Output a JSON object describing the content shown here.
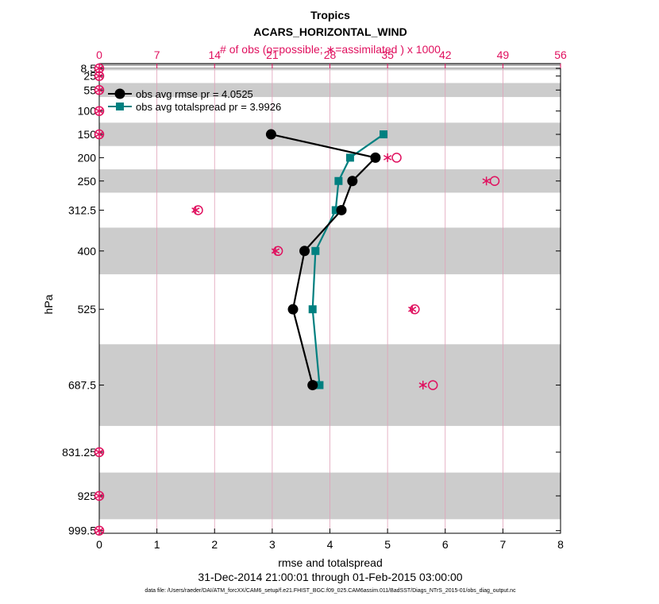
{
  "chart_data": {
    "type": "line",
    "title": "Tropics",
    "subtitle": "ACARS_HORIZONTAL_WIND",
    "top_axis_label": "# of obs (o=possible; ∗=assimilated ) x 1000",
    "xlabel": "rmse and totalspread",
    "ylabel": "hPa",
    "date_range": "31-Dec-2014 21:00:01 through 01-Feb-2015 03:00:00",
    "footnote": "data file: /Users/raeder/DAI/ATM_forcXX/CAM6_setup/f.e21.FHIST_BGC.f09_025.CAM6assim.011/BadSST/Diags_NTrS_2015-01/obs_diag_output.nc",
    "xlim": [
      0,
      8
    ],
    "xticks": [
      "0",
      "1",
      "2",
      "3",
      "4",
      "5",
      "6",
      "7",
      "8"
    ],
    "top_xlim": [
      0,
      56
    ],
    "top_xticks": [
      "0",
      "7",
      "14",
      "21",
      "28",
      "35",
      "42",
      "49",
      "56"
    ],
    "y_levels": [
      8.5,
      25,
      55,
      100,
      150,
      200,
      250,
      312.5,
      400,
      525,
      687.5,
      831.25,
      925,
      999.5
    ],
    "y_tick_labels": [
      "8.5",
      "25",
      "55",
      "100",
      "150",
      "200",
      "250",
      "312.5",
      "400",
      "525",
      "687.5",
      "831.25",
      "925",
      "999.5"
    ],
    "grid": "vertical, top axis",
    "legend_placement": "top-left",
    "shaded_layers_hPa": [
      [
        0,
        2.5
      ],
      [
        7.5,
        12.5
      ],
      [
        40,
        70
      ],
      [
        125,
        175
      ],
      [
        225,
        275
      ],
      [
        350,
        450
      ],
      [
        600,
        775
      ],
      [
        875,
        975
      ]
    ],
    "series": [
      {
        "name": "obs avg rmse pr = 4.0525",
        "color": "#000000",
        "marker": "circle",
        "points": [
          [
            2.98,
            150
          ],
          [
            4.79,
            200
          ],
          [
            4.39,
            250
          ],
          [
            4.2,
            312.5
          ],
          [
            3.56,
            400
          ],
          [
            3.36,
            525
          ],
          [
            3.7,
            687.5
          ]
        ]
      },
      {
        "name": "obs avg totalspread pr = 3.9926",
        "color": "#008080",
        "marker": "square",
        "points": [
          [
            4.93,
            150
          ],
          [
            4.35,
            200
          ],
          [
            4.15,
            250
          ],
          [
            4.1,
            312.5
          ],
          [
            3.75,
            400
          ],
          [
            3.7,
            525
          ],
          [
            3.82,
            687.5
          ]
        ]
      }
    ],
    "obs_counts_thousands": {
      "color": "#e0115f",
      "possible": [
        [
          0,
          8.5
        ],
        [
          0,
          25
        ],
        [
          0,
          55
        ],
        [
          0,
          100
        ],
        [
          0,
          150
        ],
        [
          36.1,
          200
        ],
        [
          48,
          250
        ],
        [
          12,
          312.5
        ],
        [
          21.7,
          400
        ],
        [
          38.3,
          525
        ],
        [
          40.5,
          687.5
        ],
        [
          0,
          831.25
        ],
        [
          0,
          925
        ],
        [
          0,
          999.5
        ]
      ],
      "assimilated": [
        [
          0,
          8.5
        ],
        [
          0,
          25
        ],
        [
          0,
          55
        ],
        [
          0,
          100
        ],
        [
          0,
          150
        ],
        [
          35,
          200
        ],
        [
          47,
          250
        ],
        [
          11.7,
          312.5
        ],
        [
          21.4,
          400
        ],
        [
          38,
          525
        ],
        [
          39.3,
          687.5
        ],
        [
          0,
          831.25
        ],
        [
          0,
          925
        ],
        [
          0,
          999.5
        ]
      ]
    }
  }
}
